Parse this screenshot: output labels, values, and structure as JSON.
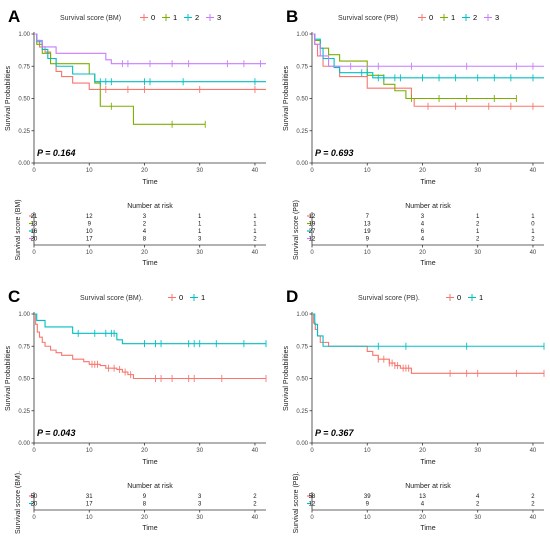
{
  "palette": [
    "#f8766d",
    "#7cae00",
    "#00bfc4",
    "#c77cff"
  ],
  "two_group_colors": [
    "#f8766d",
    "#00bfc4"
  ],
  "chart_data": [
    {
      "type": "line",
      "panel": "A",
      "legend_title": "Survival score (BM)",
      "group_labels": [
        "0",
        "1",
        "2",
        "3"
      ],
      "ylabel": "Survival Probabilities",
      "xlabel": "Time",
      "xlim": [
        0,
        42
      ],
      "ylim": [
        0,
        1
      ],
      "x_ticks": [
        0,
        10,
        20,
        30,
        40
      ],
      "y_ticks": [
        "0.00",
        "0.25",
        "0.50",
        "0.75",
        "1.00"
      ],
      "p_value": "P = 0.164",
      "series": [
        {
          "steps": [
            [
              0,
              1
            ],
            [
              0.5,
              0.95
            ],
            [
              1,
              0.9
            ],
            [
              2,
              0.86
            ],
            [
              3,
              0.81
            ],
            [
              4,
              0.71
            ],
            [
              5,
              0.67
            ],
            [
              7,
              0.62
            ],
            [
              10,
              0.57
            ],
            [
              42,
              0.57
            ]
          ],
          "censors": [
            13,
            17,
            20,
            30,
            40
          ]
        },
        {
          "steps": [
            [
              0,
              1
            ],
            [
              0.5,
              0.92
            ],
            [
              1.5,
              0.85
            ],
            [
              3,
              0.77
            ],
            [
              10,
              0.69
            ],
            [
              11,
              0.62
            ],
            [
              12,
              0.44
            ],
            [
              17,
              0.44
            ],
            [
              18,
              0.3
            ],
            [
              31,
              0.3
            ]
          ],
          "censors": [
            14,
            25,
            31
          ]
        },
        {
          "steps": [
            [
              0,
              1
            ],
            [
              0.5,
              0.94
            ],
            [
              1.5,
              0.88
            ],
            [
              2.5,
              0.81
            ],
            [
              4,
              0.75
            ],
            [
              7,
              0.69
            ],
            [
              11,
              0.63
            ],
            [
              42,
              0.63
            ]
          ],
          "censors": [
            12,
            13,
            14,
            20,
            21,
            27,
            40
          ]
        },
        {
          "steps": [
            [
              0,
              1
            ],
            [
              0.5,
              0.95
            ],
            [
              1.5,
              0.9
            ],
            [
              4,
              0.85
            ],
            [
              13,
              0.8
            ],
            [
              14,
              0.77
            ],
            [
              42,
              0.77
            ]
          ],
          "censors": [
            16,
            17,
            21,
            25,
            28,
            35,
            38,
            41
          ]
        }
      ],
      "risk_title": "Number at risk",
      "risk_ylabel": "Survival score (BM)",
      "risk_xlabel": "Time",
      "risk_times": [
        0,
        10,
        20,
        30,
        40
      ],
      "risk_rows": [
        [
          "21",
          "12",
          "3",
          "1",
          "1"
        ],
        [
          "13",
          "9",
          "2",
          "1",
          "1"
        ],
        [
          "16",
          "10",
          "4",
          "1",
          "1"
        ],
        [
          "20",
          "17",
          "8",
          "3",
          "2"
        ]
      ]
    },
    {
      "type": "line",
      "panel": "B",
      "legend_title": "Survival score (PB)",
      "group_labels": [
        "0",
        "1",
        "2",
        "3"
      ],
      "ylabel": "Survival Probabilities",
      "xlabel": "Time",
      "xlim": [
        0,
        42
      ],
      "ylim": [
        0,
        1
      ],
      "x_ticks": [
        0,
        10,
        20,
        30,
        40
      ],
      "y_ticks": [
        "0.00",
        "0.25",
        "0.50",
        "0.75",
        "1.00"
      ],
      "p_value": "P = 0.693",
      "series": [
        {
          "steps": [
            [
              0,
              1
            ],
            [
              0.5,
              0.92
            ],
            [
              1,
              0.83
            ],
            [
              2,
              0.75
            ],
            [
              5,
              0.67
            ],
            [
              10,
              0.58
            ],
            [
              18,
              0.5
            ],
            [
              18.5,
              0.44
            ],
            [
              42,
              0.44
            ]
          ],
          "censors": [
            21,
            26,
            32,
            36,
            40
          ]
        },
        {
          "steps": [
            [
              0,
              1
            ],
            [
              0.5,
              0.95
            ],
            [
              1.5,
              0.89
            ],
            [
              3,
              0.84
            ],
            [
              5,
              0.79
            ],
            [
              10,
              0.68
            ],
            [
              13,
              0.61
            ],
            [
              15,
              0.56
            ],
            [
              17,
              0.5
            ],
            [
              37,
              0.5
            ]
          ],
          "censors": [
            18,
            23,
            28,
            33,
            37
          ]
        },
        {
          "steps": [
            [
              0,
              1
            ],
            [
              0.5,
              0.96
            ],
            [
              1.5,
              0.89
            ],
            [
              2,
              0.81
            ],
            [
              4,
              0.74
            ],
            [
              5,
              0.7
            ],
            [
              11,
              0.66
            ],
            [
              42,
              0.66
            ]
          ],
          "censors": [
            9,
            10,
            12,
            13,
            15,
            16,
            20,
            23,
            26,
            30,
            33,
            36,
            40
          ]
        },
        {
          "steps": [
            [
              0,
              1
            ],
            [
              0.5,
              0.92
            ],
            [
              1.5,
              0.83
            ],
            [
              3,
              0.75
            ],
            [
              42,
              0.75
            ]
          ],
          "censors": [
            7,
            12,
            18,
            28,
            37,
            40
          ]
        }
      ],
      "risk_title": "Number at risk",
      "risk_ylabel": "Survival score (PB)",
      "risk_xlabel": "Time",
      "risk_times": [
        0,
        10,
        20,
        30,
        40
      ],
      "risk_rows": [
        [
          "12",
          "7",
          "3",
          "1",
          "1"
        ],
        [
          "19",
          "13",
          "4",
          "2",
          "0"
        ],
        [
          "27",
          "19",
          "6",
          "1",
          "1"
        ],
        [
          "12",
          "9",
          "4",
          "2",
          "2"
        ]
      ]
    },
    {
      "type": "line",
      "panel": "C",
      "legend_title": "Survival score (BM).",
      "group_labels": [
        "0",
        "1"
      ],
      "ylabel": "Survival Probabilities",
      "xlabel": "Time",
      "xlim": [
        0,
        42
      ],
      "ylim": [
        0,
        1
      ],
      "x_ticks": [
        0,
        10,
        20,
        30,
        40
      ],
      "y_ticks": [
        "0.00",
        "0.25",
        "0.50",
        "0.75",
        "1.00"
      ],
      "p_value": "P = 0.043",
      "series": [
        {
          "steps": [
            [
              0,
              1
            ],
            [
              0.3,
              0.92
            ],
            [
              0.6,
              0.86
            ],
            [
              1,
              0.82
            ],
            [
              1.5,
              0.78
            ],
            [
              2,
              0.75
            ],
            [
              3,
              0.72
            ],
            [
              4,
              0.7
            ],
            [
              5,
              0.68
            ],
            [
              7,
              0.65
            ],
            [
              9,
              0.63
            ],
            [
              10,
              0.61
            ],
            [
              12,
              0.6
            ],
            [
              13,
              0.58
            ],
            [
              15,
              0.57
            ],
            [
              16,
              0.55
            ],
            [
              17,
              0.53
            ],
            [
              18,
              0.5
            ],
            [
              42,
              0.5
            ]
          ],
          "censors": [
            10.5,
            11,
            11.5,
            13.5,
            14.5,
            15.5,
            16.5,
            17.5,
            22,
            23,
            25,
            28,
            29,
            34,
            42
          ]
        },
        {
          "steps": [
            [
              0,
              1
            ],
            [
              0.5,
              0.95
            ],
            [
              2,
              0.9
            ],
            [
              7,
              0.85
            ],
            [
              15,
              0.8
            ],
            [
              16,
              0.77
            ],
            [
              42,
              0.77
            ]
          ],
          "censors": [
            8,
            11,
            13,
            14,
            14.5,
            20,
            22,
            23,
            28,
            29,
            30,
            33,
            38,
            42
          ]
        }
      ],
      "risk_title": "Number at risk",
      "risk_ylabel": "Survival score (BM).",
      "risk_xlabel": "Time",
      "risk_times": [
        0,
        10,
        20,
        30,
        40
      ],
      "risk_rows": [
        [
          "50",
          "31",
          "9",
          "3",
          "2"
        ],
        [
          "20",
          "17",
          "8",
          "3",
          "2"
        ]
      ]
    },
    {
      "type": "line",
      "panel": "D",
      "legend_title": "Survival score (PB).",
      "group_labels": [
        "0",
        "1"
      ],
      "ylabel": "Survival Probabilities",
      "xlabel": "Time",
      "xlim": [
        0,
        42
      ],
      "ylim": [
        0,
        1
      ],
      "x_ticks": [
        0,
        10,
        20,
        30,
        40
      ],
      "y_ticks": [
        "0.00",
        "0.25",
        "0.50",
        "0.75",
        "1.00"
      ],
      "p_value": "P = 0.367",
      "series": [
        {
          "steps": [
            [
              0,
              1
            ],
            [
              0.3,
              0.93
            ],
            [
              0.6,
              0.88
            ],
            [
              1,
              0.83
            ],
            [
              1.5,
              0.78
            ],
            [
              3,
              0.75
            ],
            [
              10,
              0.71
            ],
            [
              11,
              0.68
            ],
            [
              12,
              0.65
            ],
            [
              14,
              0.62
            ],
            [
              15,
              0.6
            ],
            [
              16,
              0.58
            ],
            [
              18,
              0.54
            ],
            [
              42,
              0.54
            ]
          ],
          "censors": [
            12,
            13,
            14,
            14.5,
            15,
            15.5,
            16.5,
            17,
            17.5,
            25,
            28,
            30,
            37,
            42
          ]
        },
        {
          "steps": [
            [
              0,
              1
            ],
            [
              0.5,
              0.92
            ],
            [
              1,
              0.83
            ],
            [
              2,
              0.75
            ],
            [
              42,
              0.75
            ]
          ],
          "censors": [
            12,
            17,
            28,
            42
          ]
        }
      ],
      "risk_title": "Number at risk",
      "risk_ylabel": "Survival score (PB).",
      "risk_xlabel": "Time",
      "risk_times": [
        0,
        10,
        20,
        30,
        40
      ],
      "risk_rows": [
        [
          "58",
          "39",
          "13",
          "4",
          "2"
        ],
        [
          "12",
          "9",
          "4",
          "2",
          "2"
        ]
      ]
    }
  ]
}
